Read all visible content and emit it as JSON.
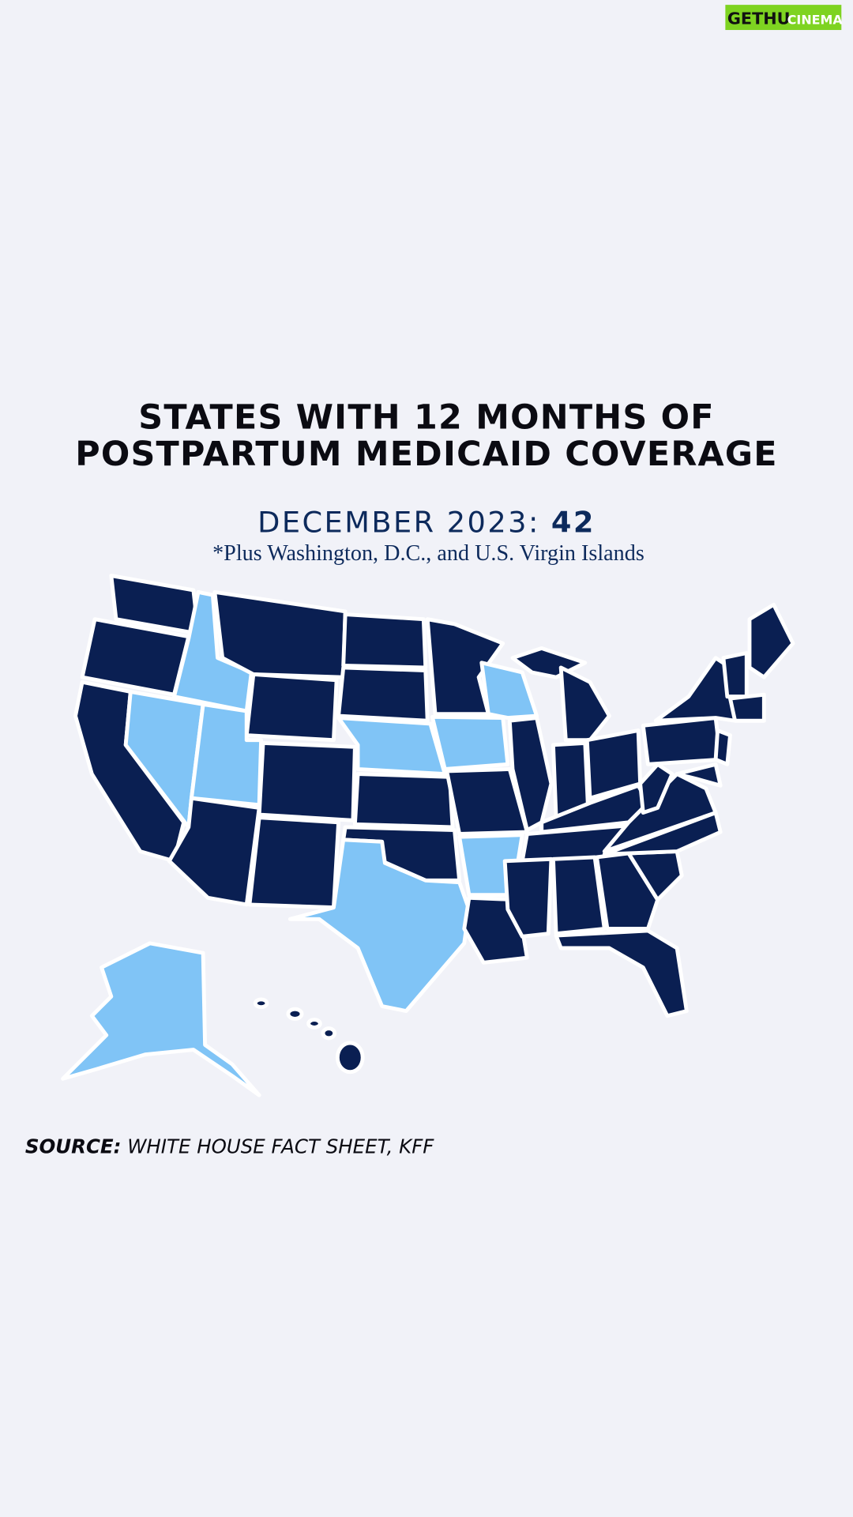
{
  "title": [
    "STATES WITH 12 MONTHS OF",
    "POSTPARTUM MEDICAID COVERAGE"
  ],
  "headline": {
    "label": "DECEMBER 2023:",
    "count": 42
  },
  "note": "*Plus Washington, D.C., and U.S. Virgin Islands",
  "source": {
    "label": "SOURCE:",
    "text": "WHITE HOUSE FACT SHEET, KFF"
  },
  "watermark": [
    "GETHU",
    "CINEMA"
  ]
}
